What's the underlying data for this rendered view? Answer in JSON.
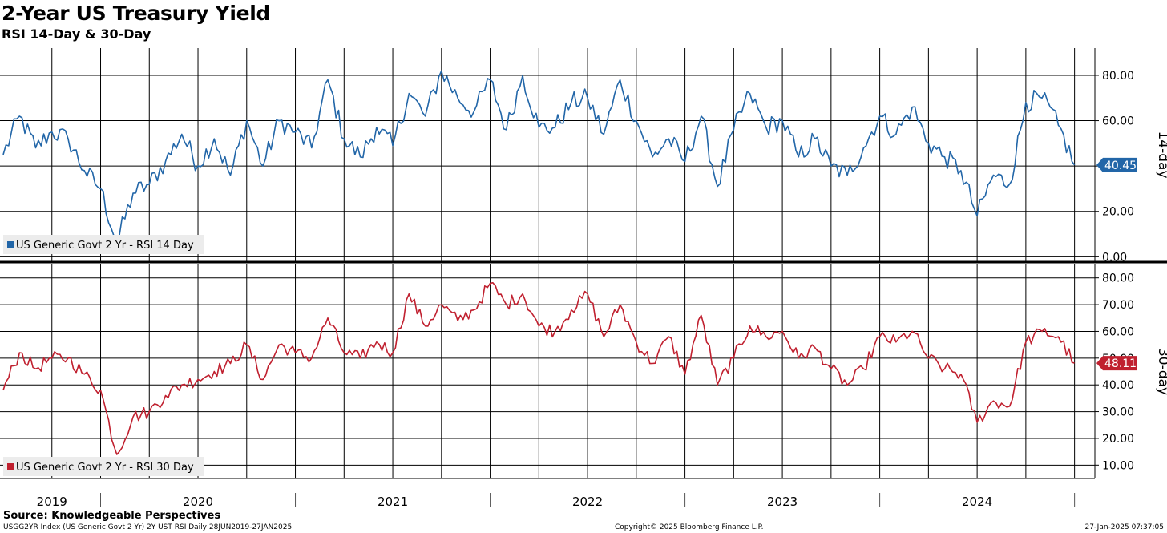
{
  "header": {
    "title": "2-Year US Treasury Yield",
    "subtitle": "RSI 14-Day & 30-Day"
  },
  "footer": {
    "source": "Source: Knowledgeable Perspectives",
    "left": "USGG2YR Index (US Generic Govt 2 Yr) 2Y UST RSI  Daily 28JUN2019-27JAN2025",
    "center": "Copyright© 2025 Bloomberg Finance L.P.",
    "right": "27-Jan-2025 07:37:05"
  },
  "colors": {
    "rsi14": "#2266a8",
    "rsi30": "#c0202f",
    "grid": "#000000"
  },
  "chart_data": [
    {
      "type": "line",
      "title": "RSI 14-Day",
      "legend": "US Generic Govt 2 Yr - RSI 14 Day",
      "side_label": "14-day",
      "last_value_label": "40.45",
      "last_value": 40.45,
      "ylim": [
        -2,
        92
      ],
      "yticks": [
        0,
        20,
        40,
        60,
        80
      ],
      "ytick_labels": [
        "0.00",
        "20.00",
        "40.00",
        "60.00",
        "80.00"
      ],
      "grid": true,
      "legend_position": "bottom-left",
      "x": [
        "2019-07",
        "2019-08",
        "2019-09",
        "2019-10",
        "2019-11",
        "2019-12",
        "2020-01",
        "2020-02",
        "2020-03",
        "2020-04",
        "2020-05",
        "2020-06",
        "2020-07",
        "2020-08",
        "2020-09",
        "2020-10",
        "2020-11",
        "2020-12",
        "2021-01",
        "2021-02",
        "2021-03",
        "2021-04",
        "2021-05",
        "2021-06",
        "2021-07",
        "2021-08",
        "2021-09",
        "2021-10",
        "2021-11",
        "2021-12",
        "2022-01",
        "2022-02",
        "2022-03",
        "2022-04",
        "2022-05",
        "2022-06",
        "2022-07",
        "2022-08",
        "2022-09",
        "2022-10",
        "2022-11",
        "2022-12",
        "2023-01",
        "2023-02",
        "2023-03",
        "2023-04",
        "2023-05",
        "2023-06",
        "2023-07",
        "2023-08",
        "2023-09",
        "2023-10",
        "2023-11",
        "2023-12",
        "2024-01",
        "2024-02",
        "2024-03",
        "2024-04",
        "2024-05",
        "2024-06",
        "2024-07",
        "2024-08",
        "2024-09",
        "2024-10",
        "2024-11",
        "2024-12",
        "2025-01"
      ],
      "values": [
        45,
        62,
        48,
        55,
        52,
        38,
        30,
        6,
        28,
        32,
        42,
        54,
        40,
        52,
        36,
        60,
        40,
        60,
        55,
        48,
        78,
        52,
        44,
        57,
        49,
        72,
        62,
        82,
        70,
        64,
        78,
        56,
        80,
        57,
        57,
        68,
        70,
        54,
        78,
        60,
        44,
        52,
        42,
        62,
        31,
        56,
        72,
        57,
        60,
        44,
        52,
        40,
        36,
        48,
        62,
        54,
        66,
        50,
        44,
        38,
        18,
        36,
        32,
        68,
        70,
        58,
        40.45
      ]
    },
    {
      "type": "line",
      "title": "RSI 30-Day",
      "legend": "US Generic Govt 2 Yr - RSI 30 Day",
      "side_label": "30-day",
      "last_value_label": "48.11",
      "last_value": 48.11,
      "ylim": [
        5,
        85
      ],
      "yticks": [
        10,
        20,
        30,
        40,
        50,
        60,
        70,
        80
      ],
      "ytick_labels": [
        "10.00",
        "20.00",
        "30.00",
        "40.00",
        "50.00",
        "60.00",
        "70.00",
        "80.00"
      ],
      "grid": true,
      "legend_position": "bottom-left",
      "x": [
        "2019-07",
        "2019-08",
        "2019-09",
        "2019-10",
        "2019-11",
        "2019-12",
        "2020-01",
        "2020-02",
        "2020-03",
        "2020-04",
        "2020-05",
        "2020-06",
        "2020-07",
        "2020-08",
        "2020-09",
        "2020-10",
        "2020-11",
        "2020-12",
        "2021-01",
        "2021-02",
        "2021-03",
        "2021-04",
        "2021-05",
        "2021-06",
        "2021-07",
        "2021-08",
        "2021-09",
        "2021-10",
        "2021-11",
        "2021-12",
        "2022-01",
        "2022-02",
        "2022-03",
        "2022-04",
        "2022-05",
        "2022-06",
        "2022-07",
        "2022-08",
        "2022-09",
        "2022-10",
        "2022-11",
        "2022-12",
        "2023-01",
        "2023-02",
        "2023-03",
        "2023-04",
        "2023-05",
        "2023-06",
        "2023-07",
        "2023-08",
        "2023-09",
        "2023-10",
        "2023-11",
        "2023-12",
        "2024-01",
        "2024-02",
        "2024-03",
        "2024-04",
        "2024-05",
        "2024-06",
        "2024-07",
        "2024-08",
        "2024-09",
        "2024-10",
        "2024-11",
        "2024-12",
        "2025-01"
      ],
      "values": [
        38,
        52,
        46,
        50,
        50,
        44,
        38,
        14,
        28,
        30,
        36,
        40,
        42,
        45,
        48,
        55,
        42,
        55,
        52,
        50,
        65,
        52,
        50,
        56,
        52,
        74,
        62,
        70,
        64,
        68,
        78,
        70,
        74,
        62,
        60,
        68,
        74,
        58,
        70,
        56,
        48,
        58,
        44,
        66,
        40,
        50,
        62,
        58,
        60,
        50,
        54,
        46,
        40,
        46,
        58,
        56,
        60,
        50,
        46,
        44,
        26,
        34,
        32,
        56,
        60,
        58,
        48.11
      ]
    }
  ],
  "x_axis": {
    "year_labels": [
      "2019",
      "2020",
      "2021",
      "2022",
      "2023",
      "2024"
    ]
  }
}
